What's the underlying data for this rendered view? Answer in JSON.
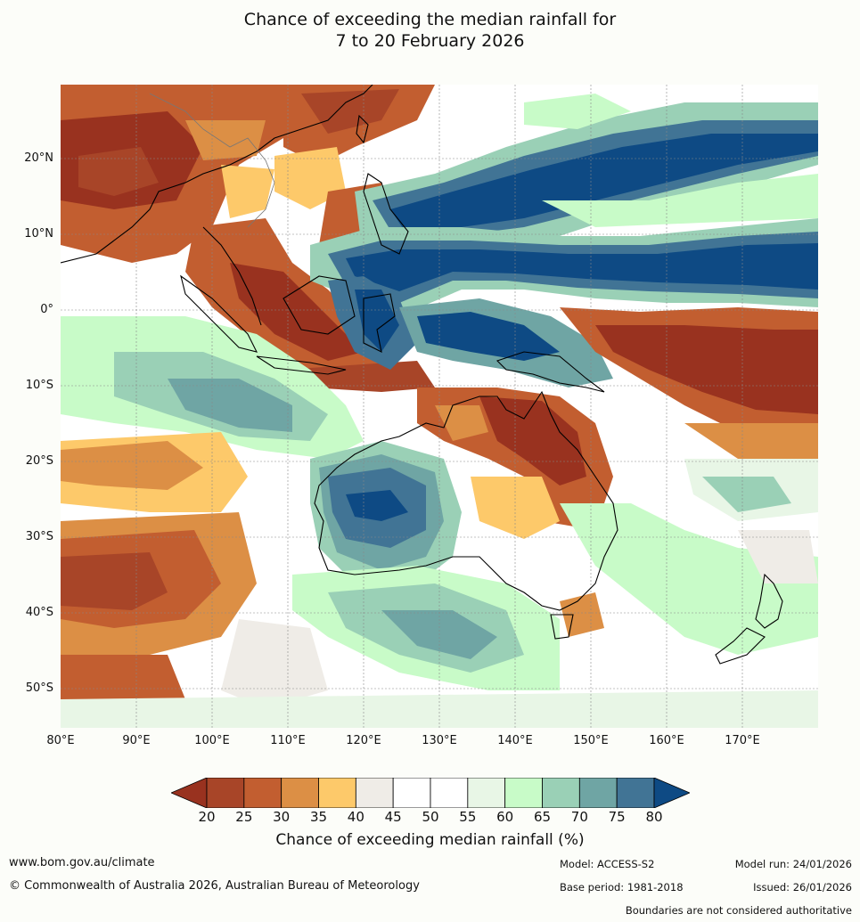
{
  "title_line1": "Chance of exceeding the median rainfall for",
  "title_line2": "7 to 20 February 2026",
  "lat_labels": [
    "20°N",
    "10°N",
    "0°",
    "10°S",
    "20°S",
    "30°S",
    "40°S",
    "50°S"
  ],
  "lon_labels": [
    "80°E",
    "90°E",
    "100°E",
    "110°E",
    "120°E",
    "130°E",
    "140°E",
    "150°E",
    "160°E",
    "170°E"
  ],
  "colorbar": {
    "ticks": [
      "20",
      "25",
      "30",
      "35",
      "40",
      "45",
      "50",
      "55",
      "60",
      "65",
      "70",
      "75",
      "80"
    ],
    "colors": [
      "#99321f",
      "#a84528",
      "#c25e30",
      "#dc8f45",
      "#fdc96a",
      "#efece7",
      "#ffffff",
      "#ffffff",
      "#e8f6e6",
      "#c8fbc8",
      "#9ad0b6",
      "#6fa5a4",
      "#417495",
      "#0e4a84"
    ],
    "label": "Chance of exceeding median rainfall (%)"
  },
  "footer": {
    "website": "www.bom.gov.au/climate",
    "copyright": "© Commonwealth of Australia 2026, Australian Bureau of Meteorology",
    "model": "Model: ACCESS-S2",
    "base_period": "Base period: 1981-2018",
    "model_run": "Model run: 24/01/2026",
    "issued": "Issued: 26/01/2026",
    "disclaimer": "Boundaries are not considered authoritative"
  }
}
